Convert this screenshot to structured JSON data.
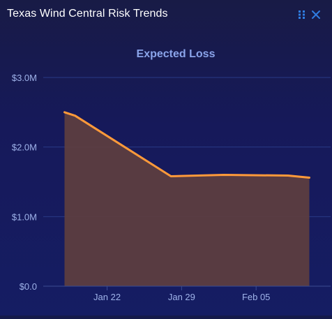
{
  "panel": {
    "title": "Texas Wind Central Risk Trends",
    "icons": [
      "drag-handle-icon",
      "close-icon"
    ],
    "accent_color": "#2f7de1"
  },
  "chart_data": {
    "type": "area",
    "title": "Expected Loss",
    "xlabel": "",
    "ylabel": "",
    "x_tick_labels": [
      "Jan 22",
      "Jan 29",
      "Feb 05"
    ],
    "y_tick_labels": [
      "$0.0",
      "$1.0M",
      "$2.0M",
      "$3.0M"
    ],
    "ylim": [
      0,
      3000000
    ],
    "grid": true,
    "legend": "none",
    "line_color": "#ff9a3a",
    "fill_color": "#5e3e3f",
    "series": [
      {
        "x": [
          "2024-01-18",
          "2024-01-19",
          "2024-01-28",
          "2024-02-02",
          "2024-02-08",
          "2024-02-10"
        ],
        "values": [
          2500000,
          2450000,
          1580000,
          1600000,
          1590000,
          1560000
        ]
      }
    ]
  }
}
